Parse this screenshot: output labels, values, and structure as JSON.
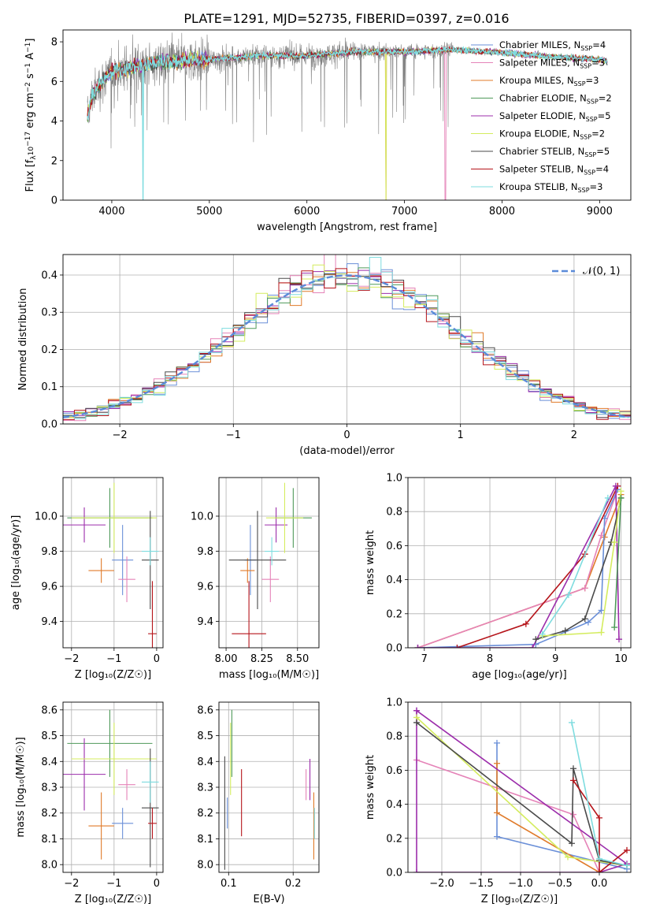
{
  "colors": {
    "grid": "#b0b0b0",
    "data_spectrum": "#808080",
    "gaussian": "#5b8bd9",
    "models": [
      "#6a8fd8",
      "#e583b8",
      "#e07b2a",
      "#4f9a5a",
      "#9c2dab",
      "#d4ec5e",
      "#4a4a4a",
      "#b5141a",
      "#7edcdf"
    ]
  },
  "panel_spectrum": {
    "title": "PLATE=1291, MJD=52735, FIBERID=0397, z=0.016",
    "ylabel_main": "Flux [f",
    "ylabel_sub": "λ",
    "ylabel_rest": "10",
    "ylabel_exp": "−17",
    "ylabel_tail": " erg cm",
    "xlabel": "wavelength [Angstrom, rest frame]",
    "legend": [
      {
        "name": "Chabrier MILES",
        "nssp": "4"
      },
      {
        "name": "Salpeter MILES",
        "nssp": "3"
      },
      {
        "name": "Kroupa MILES",
        "nssp": "3"
      },
      {
        "name": "Chabrier ELODIE",
        "nssp": "2"
      },
      {
        "name": "Salpeter ELODIE",
        "nssp": "5"
      },
      {
        "name": "Kroupa ELODIE",
        "nssp": "2"
      },
      {
        "name": "Chabrier STELIB",
        "nssp": "5"
      },
      {
        "name": "Salpeter STELIB",
        "nssp": "4"
      },
      {
        "name": "Kroupa STELIB",
        "nssp": "3"
      }
    ],
    "nssp_prefix": ", N",
    "nssp_sub": "SSP",
    "nssp_eq": "="
  },
  "panel_residuals": {
    "ylabel": "Normed distribution",
    "xlabel": "(data-model)/error",
    "legend_label": "𝒩(0, 1)"
  },
  "panel_age_Z": {
    "ylabel": "age  [log₁₀(age/yr)]",
    "xlabel": "Z [log₁₀(Z/Z☉)]"
  },
  "panel_age_mass": {
    "xlabel": "mass [log₁₀(M/M☉)]"
  },
  "panel_weight_age": {
    "ylabel": "mass weight",
    "xlabel": "age  [log₁₀(age/yr)]"
  },
  "panel_mass_Z": {
    "ylabel": "mass [log₁₀(M/M☉)]",
    "xlabel": "Z [log₁₀(Z/Z☉)]"
  },
  "panel_mass_ebv": {
    "xlabel": "E(B-V)"
  },
  "panel_weight_Z": {
    "ylabel": "mass weight",
    "xlabel": "Z [log₁₀(Z/Z☉)]"
  },
  "chart_data": [
    {
      "type": "line",
      "id": "spectrum",
      "xlim": [
        3500,
        9320
      ],
      "ylim": [
        0,
        8.6
      ],
      "xticks": [
        4000,
        5000,
        6000,
        7000,
        8000,
        9000
      ],
      "yticks": [
        0,
        2,
        4,
        6,
        8
      ],
      "grid": false,
      "legend_position": "top-right",
      "data_range": [
        3750,
        9080
      ],
      "continuum_points": [
        [
          3750,
          4.2
        ],
        [
          3800,
          5.3
        ],
        [
          3900,
          6.0
        ],
        [
          4000,
          6.5
        ],
        [
          4200,
          6.7
        ],
        [
          4500,
          7.0
        ],
        [
          5000,
          7.1
        ],
        [
          5500,
          7.3
        ],
        [
          6000,
          7.3
        ],
        [
          6500,
          7.5
        ],
        [
          7000,
          7.5
        ],
        [
          7500,
          7.6
        ],
        [
          8000,
          7.45
        ],
        [
          8500,
          7.25
        ],
        [
          9000,
          7.1
        ],
        [
          9080,
          7.0
        ]
      ],
      "model_cutoffs": [
        {
          "model": 2,
          "cut_x": 6810
        },
        {
          "model": 5,
          "cut_x": 6810
        },
        {
          "model": 1,
          "cut_x": 7420
        },
        {
          "model": 8,
          "cut_x": 4320
        }
      ]
    },
    {
      "type": "step",
      "id": "residuals",
      "xlim": [
        -2.5,
        2.5
      ],
      "ylim": [
        0,
        0.455
      ],
      "xticks": [
        -2,
        -1,
        0,
        1,
        2
      ],
      "yticks": [
        0.0,
        0.1,
        0.2,
        0.3,
        0.4
      ],
      "grid": true,
      "bin_width": 0.1,
      "gaussian": {
        "mu": 0,
        "sigma": 1
      },
      "legend_position": "top-right"
    },
    {
      "type": "errorbar",
      "id": "age_vs_Z",
      "xlim": [
        -2.2,
        0.15
      ],
      "ylim": [
        9.25,
        10.22
      ],
      "xticks": [
        -2,
        -1,
        0
      ],
      "yticks": [
        9.4,
        9.6,
        9.8,
        10.0
      ],
      "grid": true,
      "points": [
        {
          "c": 0,
          "x": -0.8,
          "xerr": 0.25,
          "y": 9.75,
          "yerr": 0.2
        },
        {
          "c": 1,
          "x": -0.7,
          "xerr": 0.2,
          "y": 9.64,
          "yerr": 0.13
        },
        {
          "c": 2,
          "x": -1.3,
          "xerr": 0.3,
          "y": 9.69,
          "yerr": 0.07
        },
        {
          "c": 3,
          "x": -1.1,
          "xerr": 1.0,
          "y": 9.99,
          "yerr": 0.17
        },
        {
          "c": 4,
          "x": -1.7,
          "xerr": 0.5,
          "y": 9.95,
          "yerr": 0.1
        },
        {
          "c": 5,
          "x": -1.0,
          "xerr": 1.0,
          "y": 9.99,
          "yerr": 0.2
        },
        {
          "c": 6,
          "x": -0.15,
          "xerr": 0.2,
          "y": 9.75,
          "yerr": 0.28
        },
        {
          "c": 7,
          "x": -0.1,
          "xerr": 0.1,
          "y": 9.33,
          "yerr": 0.3
        },
        {
          "c": 8,
          "x": -0.15,
          "xerr": 0.2,
          "y": 9.8,
          "yerr": 0.08
        }
      ]
    },
    {
      "type": "errorbar",
      "id": "age_vs_mass",
      "xlim": [
        7.95,
        8.65
      ],
      "ylim": [
        9.25,
        10.22
      ],
      "xticks": [
        8.0,
        8.25,
        8.5
      ],
      "yticks": [
        9.4,
        9.6,
        9.8,
        10.0
      ],
      "grid": true,
      "points": [
        {
          "c": 0,
          "x": 8.17,
          "xerr": 0.04,
          "y": 9.75,
          "yerr": 0.2
        },
        {
          "c": 1,
          "x": 8.31,
          "xerr": 0.06,
          "y": 9.64,
          "yerr": 0.13
        },
        {
          "c": 2,
          "x": 8.15,
          "xerr": 0.05,
          "y": 9.69,
          "yerr": 0.07
        },
        {
          "c": 3,
          "x": 8.47,
          "xerr": 0.13,
          "y": 9.99,
          "yerr": 0.17
        },
        {
          "c": 4,
          "x": 8.35,
          "xerr": 0.08,
          "y": 9.95,
          "yerr": 0.1
        },
        {
          "c": 5,
          "x": 8.41,
          "xerr": 0.13,
          "y": 9.99,
          "yerr": 0.2
        },
        {
          "c": 6,
          "x": 8.22,
          "xerr": 0.2,
          "y": 9.75,
          "yerr": 0.28
        },
        {
          "c": 7,
          "x": 8.16,
          "xerr": 0.12,
          "y": 9.33,
          "yerr": 0.3
        },
        {
          "c": 8,
          "x": 8.32,
          "xerr": 0.05,
          "y": 9.8,
          "yerr": 0.08
        }
      ]
    },
    {
      "type": "line",
      "id": "weight_vs_age",
      "xlim": [
        6.75,
        10.15
      ],
      "ylim": [
        0,
        1.0
      ],
      "xticks": [
        7,
        8,
        9,
        10
      ],
      "yticks": [
        0.0,
        0.2,
        0.4,
        0.6,
        0.8,
        1.0
      ],
      "grid": true,
      "series": [
        {
          "c": 2,
          "points": [
            [
              6.9,
              0.0
            ],
            [
              9.45,
              0.35
            ],
            [
              9.75,
              0.65
            ],
            [
              10.0,
              0.9
            ]
          ]
        },
        {
          "c": 1,
          "points": [
            [
              6.9,
              0.0
            ],
            [
              9.45,
              0.35
            ],
            [
              9.7,
              0.66
            ],
            [
              9.95,
              0.93
            ]
          ]
        },
        {
          "c": 0,
          "points": [
            [
              6.9,
              0.0
            ],
            [
              8.7,
              0.02
            ],
            [
              9.5,
              0.15
            ],
            [
              9.7,
              0.22
            ],
            [
              9.75,
              0.76
            ],
            [
              9.95,
              0.93
            ]
          ]
        },
        {
          "c": 7,
          "points": [
            [
              7.5,
              0.0
            ],
            [
              8.55,
              0.14
            ],
            [
              9.45,
              0.55
            ],
            [
              9.95,
              0.95
            ]
          ]
        },
        {
          "c": 4,
          "points": [
            [
              6.9,
              0.0
            ],
            [
              8.65,
              0.0
            ],
            [
              9.92,
              0.95
            ],
            [
              9.97,
              0.05
            ]
          ]
        },
        {
          "c": 6,
          "points": [
            [
              8.7,
              0.05
            ],
            [
              9.15,
              0.1
            ],
            [
              9.45,
              0.17
            ],
            [
              9.85,
              0.62
            ],
            [
              10.0,
              0.88
            ]
          ]
        },
        {
          "c": 5,
          "points": [
            [
              8.8,
              0.07
            ],
            [
              9.7,
              0.09
            ],
            [
              9.9,
              0.62
            ],
            [
              10.0,
              0.92
            ]
          ]
        },
        {
          "c": 8,
          "points": [
            [
              8.8,
              0.08
            ],
            [
              9.2,
              0.31
            ],
            [
              9.8,
              0.88
            ]
          ]
        },
        {
          "c": 3,
          "points": [
            [
              9.9,
              0.12
            ],
            [
              10.0,
              0.88
            ]
          ]
        }
      ]
    },
    {
      "type": "errorbar",
      "id": "mass_vs_Z",
      "xlim": [
        -2.2,
        0.15
      ],
      "ylim": [
        7.97,
        8.63
      ],
      "xticks": [
        -2,
        -1,
        0
      ],
      "yticks": [
        8.0,
        8.1,
        8.2,
        8.3,
        8.4,
        8.5,
        8.6
      ],
      "grid": true,
      "points": [
        {
          "c": 0,
          "x": -0.8,
          "xerr": 0.25,
          "y": 8.16,
          "yerr": 0.06
        },
        {
          "c": 1,
          "x": -0.7,
          "xerr": 0.2,
          "y": 8.31,
          "yerr": 0.06
        },
        {
          "c": 2,
          "x": -1.3,
          "xerr": 0.3,
          "y": 8.15,
          "yerr": 0.13
        },
        {
          "c": 3,
          "x": -1.1,
          "xerr": 1.0,
          "y": 8.47,
          "yerr": 0.13
        },
        {
          "c": 4,
          "x": -1.7,
          "xerr": 0.5,
          "y": 8.35,
          "yerr": 0.14
        },
        {
          "c": 5,
          "x": -1.0,
          "xerr": 1.0,
          "y": 8.41,
          "yerr": 0.14
        },
        {
          "c": 6,
          "x": -0.15,
          "xerr": 0.2,
          "y": 8.22,
          "yerr": 0.23
        },
        {
          "c": 7,
          "x": -0.1,
          "xerr": 0.1,
          "y": 8.16,
          "yerr": 0.06
        },
        {
          "c": 8,
          "x": -0.15,
          "xerr": 0.2,
          "y": 8.32,
          "yerr": 0.08
        }
      ]
    },
    {
      "type": "errorbar",
      "id": "mass_vs_ebv",
      "xlim": [
        0.085,
        0.24
      ],
      "ylim": [
        7.97,
        8.63
      ],
      "xticks": [
        0.1,
        0.2
      ],
      "yticks": [
        8.0,
        8.1,
        8.2,
        8.3,
        8.4,
        8.5,
        8.6
      ],
      "grid": true,
      "points": [
        {
          "c": 0,
          "x": 0.098,
          "y": 8.2,
          "yerr": 0.06
        },
        {
          "c": 1,
          "x": 0.22,
          "y": 8.31,
          "yerr": 0.06
        },
        {
          "c": 2,
          "x": 0.232,
          "y": 8.15,
          "yerr": 0.13
        },
        {
          "c": 3,
          "x": 0.105,
          "y": 8.47,
          "yerr": 0.13
        },
        {
          "c": 4,
          "x": 0.226,
          "y": 8.33,
          "yerr": 0.08
        },
        {
          "c": 5,
          "x": 0.103,
          "y": 8.41,
          "yerr": 0.14
        },
        {
          "c": 6,
          "x": 0.094,
          "y": 8.2,
          "yerr": 0.22
        },
        {
          "c": 7,
          "x": 0.12,
          "y": 8.24,
          "yerr": 0.13
        },
        {
          "c": 8,
          "x": 0.233,
          "y": 8.16,
          "yerr": 0.06
        }
      ]
    },
    {
      "type": "line",
      "id": "weight_vs_Z",
      "xlim": [
        -2.43,
        0.4
      ],
      "ylim": [
        0,
        1.0
      ],
      "xticks": [
        -2.0,
        -1.5,
        -1.0,
        -0.5,
        0.0
      ],
      "yticks": [
        0.0,
        0.2,
        0.4,
        0.6,
        0.8,
        1.0
      ],
      "grid": true,
      "series": [
        {
          "c": 0,
          "points": [
            [
              -1.3,
              0.76
            ],
            [
              -1.3,
              0.21
            ],
            [
              0.35,
              0.02
            ]
          ]
        },
        {
          "c": 1,
          "points": [
            [
              -2.32,
              0.66
            ],
            [
              -0.33,
              0.34
            ],
            [
              0.0,
              0.0
            ]
          ]
        },
        {
          "c": 2,
          "points": [
            [
              -1.3,
              0.64
            ],
            [
              -1.3,
              0.35
            ],
            [
              0.0,
              0.0
            ]
          ]
        },
        {
          "c": 4,
          "points": [
            [
              -2.32,
              0.95
            ],
            [
              -2.32,
              0.0
            ],
            [
              0.0,
              0.0
            ],
            [
              0.35,
              0.05
            ],
            [
              -2.32,
              0.95
            ]
          ]
        },
        {
          "c": 5,
          "points": [
            [
              -2.32,
              0.91
            ],
            [
              -0.4,
              0.09
            ],
            [
              0.35,
              0.04
            ]
          ]
        },
        {
          "c": 6,
          "points": [
            [
              -2.32,
              0.88
            ],
            [
              -0.35,
              0.17
            ],
            [
              -0.33,
              0.61
            ],
            [
              0.0,
              0.07
            ],
            [
              0.35,
              0.04
            ]
          ]
        },
        {
          "c": 7,
          "points": [
            [
              -0.33,
              0.54
            ],
            [
              0.0,
              0.32
            ],
            [
              0.0,
              0.0
            ],
            [
              0.35,
              0.13
            ]
          ]
        },
        {
          "c": 8,
          "points": [
            [
              -0.35,
              0.88
            ],
            [
              0.0,
              0.08
            ],
            [
              0.35,
              0.04
            ]
          ]
        }
      ]
    }
  ]
}
